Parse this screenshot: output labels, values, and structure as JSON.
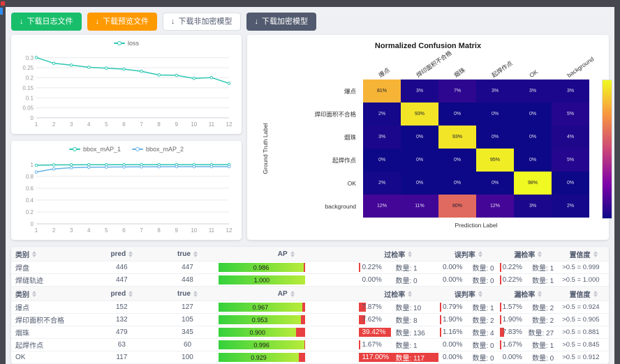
{
  "toolbar": {
    "buttons": [
      {
        "label": "下载日志文件"
      },
      {
        "label": "下载预览文件"
      },
      {
        "label": "下载非加密模型"
      },
      {
        "label": "下载加密模型"
      }
    ],
    "download_icon": "↓"
  },
  "chart_data": [
    {
      "type": "line",
      "name": "loss-chart",
      "x": [
        1,
        2,
        3,
        4,
        5,
        6,
        7,
        8,
        9,
        10,
        11,
        12
      ],
      "ylim": [
        0,
        0.32
      ],
      "yticks": [
        0,
        0.05,
        0.1,
        0.15,
        0.2,
        0.25,
        0.3
      ],
      "grid": true,
      "legend_position": "top",
      "series": [
        {
          "name": "loss",
          "color": "#2cc7b2",
          "values": [
            0.301,
            0.272,
            0.263,
            0.252,
            0.248,
            0.243,
            0.232,
            0.214,
            0.212,
            0.197,
            0.201,
            0.172
          ]
        }
      ]
    },
    {
      "type": "line",
      "name": "bbox-map-chart",
      "x": [
        1,
        2,
        3,
        4,
        5,
        6,
        7,
        8,
        9,
        10,
        11,
        12
      ],
      "ylim": [
        0,
        1.08
      ],
      "yticks": [
        0,
        0.2,
        0.4,
        0.6,
        0.8,
        1
      ],
      "grid": true,
      "legend_position": "top",
      "series": [
        {
          "name": "bbox_mAP_1",
          "color": "#2cc7b2",
          "values": [
            0.985,
            0.992,
            0.994,
            0.995,
            0.995,
            0.996,
            0.996,
            0.996,
            0.996,
            0.997,
            0.997,
            0.997
          ]
        },
        {
          "name": "bbox_mAP_2",
          "color": "#66b3e8",
          "values": [
            0.872,
            0.925,
            0.945,
            0.952,
            0.956,
            0.958,
            0.96,
            0.961,
            0.962,
            0.962,
            0.963,
            0.963
          ]
        }
      ]
    },
    {
      "type": "heatmap",
      "title": "Normalized Confusion Matrix",
      "xlabel": "Prediction Label",
      "ylabel": "Ground Truth Label",
      "labels": [
        "爆点",
        "焊印面积不合格",
        "烟珠",
        "起焊作点",
        "OK",
        "background"
      ],
      "matrix": [
        [
          81,
          3,
          7,
          3,
          3,
          3
        ],
        [
          2,
          93,
          0,
          0,
          0,
          5
        ],
        [
          3,
          0,
          93,
          0,
          0,
          4
        ],
        [
          0,
          0,
          0,
          95,
          0,
          5
        ],
        [
          2,
          0,
          0,
          0,
          98,
          0
        ],
        [
          12,
          11,
          60,
          12,
          3,
          2
        ]
      ],
      "vmax": 98,
      "colorbar_ticks": [
        0,
        20,
        40,
        60,
        80
      ],
      "colormap": "plasma",
      "cell_unit": "%"
    }
  ],
  "tables": {
    "headers": [
      "类别",
      "pred",
      "true",
      "AP",
      "过检率",
      "误判率",
      "漏检率",
      "置信度"
    ],
    "count_label": "数量:",
    "groups": [
      {
        "rows": [
          {
            "name": "焊盘",
            "pred": "446",
            "true": "447",
            "ap": "0.986",
            "over_pct": "0.22%",
            "over_v": 0.22,
            "over_n": "1",
            "mis_pct": "0.00%",
            "mis_v": 0,
            "mis_n": "0",
            "miss_pct": "0.22%",
            "miss_v": 0.22,
            "miss_n": "1",
            "conf": ">0.5 = 0.999"
          },
          {
            "name": "焊缝轨迹",
            "pred": "447",
            "true": "448",
            "ap": "1.000",
            "over_pct": "0.00%",
            "over_v": 0,
            "over_n": "0",
            "mis_pct": "0.00%",
            "mis_v": 0,
            "mis_n": "0",
            "miss_pct": "0.22%",
            "miss_v": 0.22,
            "miss_n": "1",
            "conf": ">0.5 = 1.000"
          }
        ]
      },
      {
        "rows": [
          {
            "name": "爆点",
            "pred": "152",
            "true": "127",
            "ap": "0.967",
            "over_pct": "7.87%",
            "over_v": 7.87,
            "over_n": "10",
            "mis_pct": "0.79%",
            "mis_v": 0.79,
            "mis_n": "1",
            "miss_pct": "1.57%",
            "miss_v": 1.57,
            "miss_n": "2",
            "conf": ">0.5 = 0.924"
          },
          {
            "name": "焊印面积不合格",
            "pred": "132",
            "true": "105",
            "ap": "0.953",
            "over_pct": "7.62%",
            "over_v": 7.62,
            "over_n": "8",
            "mis_pct": "1.90%",
            "mis_v": 1.9,
            "mis_n": "2",
            "miss_pct": "1.90%",
            "miss_v": 1.9,
            "miss_n": "2",
            "conf": ">0.5 = 0.905"
          },
          {
            "name": "烟珠",
            "pred": "479",
            "true": "345",
            "ap": "0.900",
            "over_pct": "39.42%",
            "over_v": 39.42,
            "over_n": "136",
            "mis_pct": "1.16%",
            "mis_v": 1.16,
            "mis_n": "4",
            "miss_pct": "7.83%",
            "miss_v": 7.83,
            "miss_n": "27",
            "conf": ">0.5 = 0.881"
          },
          {
            "name": "起焊作点",
            "pred": "63",
            "true": "60",
            "ap": "0.996",
            "over_pct": "1.67%",
            "over_v": 1.67,
            "over_n": "1",
            "mis_pct": "0.00%",
            "mis_v": 0,
            "mis_n": "0",
            "miss_pct": "1.67%",
            "miss_v": 1.67,
            "miss_n": "1",
            "conf": ">0.5 = 0.845"
          },
          {
            "name": "OK",
            "pred": "117",
            "true": "100",
            "ap": "0.929",
            "over_pct": "117.00%",
            "over_v": 117,
            "over_n": "117",
            "mis_pct": "0.00%",
            "mis_v": 0,
            "mis_n": "0",
            "miss_pct": "0.00%",
            "miss_v": 0,
            "miss_n": "0",
            "conf": ">0.5 = 0.912"
          }
        ]
      }
    ]
  }
}
